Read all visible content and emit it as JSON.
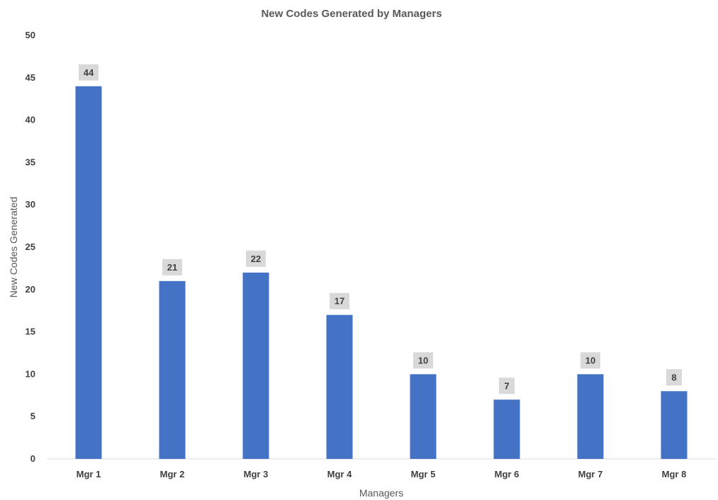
{
  "chart_data": {
    "type": "bar",
    "title": "New Codes Generated by Managers",
    "xlabel": "Managers",
    "ylabel": "New Codes Generated",
    "categories": [
      "Mgr 1",
      "Mgr 2",
      "Mgr 3",
      "Mgr 4",
      "Mgr 5",
      "Mgr 6",
      "Mgr 7",
      "Mgr 8"
    ],
    "values": [
      44,
      21,
      22,
      17,
      10,
      7,
      10,
      8
    ],
    "ylim": [
      0,
      50
    ],
    "yticks": [
      0,
      5,
      10,
      15,
      20,
      25,
      30,
      35,
      40,
      45,
      50
    ],
    "grid": false,
    "data_labels": true,
    "legend": "none",
    "colors": {
      "bar": "#4472C4",
      "data_label_background": "#D9D9D9",
      "text": "#404040",
      "axis_line": "#D9D9D9"
    }
  }
}
